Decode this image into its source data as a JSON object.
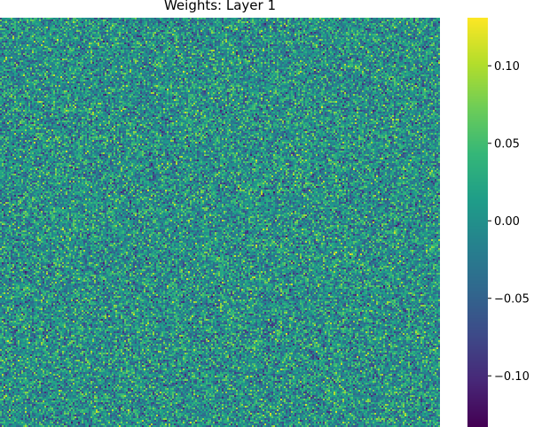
{
  "chart_data": {
    "type": "heatmap",
    "title": "Weights: Layer 1",
    "colormap": "viridis",
    "vmin": -0.133,
    "vmax": 0.131,
    "colorbar": {
      "ticks": [
        0.1,
        0.05,
        0.0,
        -0.05,
        -0.1
      ],
      "tick_labels": [
        "0.10",
        "0.05",
        "0.00",
        "−0.05",
        "−0.10"
      ]
    },
    "grid": false,
    "legend": "colorbar-right",
    "distribution": "random uniform weights, approximately centered at 0.00"
  }
}
